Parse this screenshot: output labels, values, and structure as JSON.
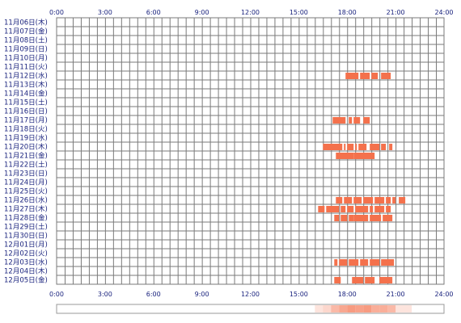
{
  "chart_data": {
    "type": "heatmap",
    "title": "",
    "xlabel": "",
    "ylabel": "",
    "x_ticks": [
      "0:00",
      "3:00",
      "6:00",
      "9:00",
      "12:00",
      "15:00",
      "18:00",
      "21:00",
      "24:00"
    ],
    "xlim": [
      0,
      24
    ],
    "grid_step_hours": 0.5,
    "grid": true,
    "colors": {
      "bar": "#f4714c",
      "bar_edge": "#e8563a",
      "grid": "#7a7a7a",
      "text": "#1a237e",
      "summary_border": "#999999"
    },
    "rows": [
      {
        "label": "11月06日(木)",
        "segments": []
      },
      {
        "label": "11月07日(金)",
        "segments": []
      },
      {
        "label": "11月08日(土)",
        "segments": []
      },
      {
        "label": "11月09日(日)",
        "segments": []
      },
      {
        "label": "11月10日(月)",
        "segments": []
      },
      {
        "label": "11月11日(火)",
        "segments": []
      },
      {
        "label": "11月12日(水)",
        "segments": [
          [
            17.9,
            18.7
          ],
          [
            18.8,
            19.4
          ],
          [
            19.5,
            19.9
          ],
          [
            20.1,
            20.7
          ]
        ]
      },
      {
        "label": "11月13日(木)",
        "segments": []
      },
      {
        "label": "11月14日(金)",
        "segments": []
      },
      {
        "label": "11月15日(土)",
        "segments": []
      },
      {
        "label": "11月16日(日)",
        "segments": []
      },
      {
        "label": "11月17日(月)",
        "segments": [
          [
            17.1,
            17.9
          ],
          [
            18.1,
            18.3
          ],
          [
            18.4,
            18.8
          ],
          [
            19.0,
            19.4
          ]
        ]
      },
      {
        "label": "11月18日(火)",
        "segments": []
      },
      {
        "label": "11月19日(水)",
        "segments": []
      },
      {
        "label": "11月20日(木)",
        "segments": [
          [
            16.5,
            17.7
          ],
          [
            17.8,
            17.9
          ],
          [
            18.0,
            18.4
          ],
          [
            18.5,
            18.6
          ],
          [
            18.7,
            19.2
          ],
          [
            19.4,
            20.0
          ],
          [
            20.1,
            20.4
          ],
          [
            20.6,
            20.8
          ]
        ]
      },
      {
        "label": "11月21日(金)",
        "segments": [
          [
            17.3,
            18.4
          ],
          [
            18.4,
            19.7
          ]
        ]
      },
      {
        "label": "11月22日(土)",
        "segments": []
      },
      {
        "label": "11月23日(日)",
        "segments": []
      },
      {
        "label": "11月24日(月)",
        "segments": []
      },
      {
        "label": "11月25日(火)",
        "segments": []
      },
      {
        "label": "11月26日(水)",
        "segments": [
          [
            17.3,
            17.7
          ],
          [
            17.8,
            18.3
          ],
          [
            18.4,
            18.9
          ],
          [
            19.0,
            19.6
          ],
          [
            19.7,
            20.3
          ],
          [
            20.4,
            20.7
          ],
          [
            20.8,
            21.0
          ],
          [
            21.2,
            21.6
          ]
        ]
      },
      {
        "label": "11月27日(木)",
        "segments": [
          [
            16.2,
            16.6
          ],
          [
            16.7,
            17.5
          ],
          [
            17.6,
            17.9
          ],
          [
            18.0,
            18.4
          ],
          [
            18.5,
            19.3
          ],
          [
            19.4,
            19.6
          ],
          [
            19.7,
            20.3
          ],
          [
            20.4,
            20.7
          ]
        ]
      },
      {
        "label": "11月28日(金)",
        "segments": [
          [
            17.2,
            17.5
          ],
          [
            17.6,
            18.0
          ],
          [
            18.1,
            18.4
          ],
          [
            18.4,
            19.3
          ],
          [
            19.4,
            20.1
          ],
          [
            20.2,
            20.8
          ]
        ]
      },
      {
        "label": "11月29日(土)",
        "segments": []
      },
      {
        "label": "11月30日(日)",
        "segments": []
      },
      {
        "label": "12月01日(月)",
        "segments": []
      },
      {
        "label": "12月02日(火)",
        "segments": []
      },
      {
        "label": "12月03日(水)",
        "segments": [
          [
            17.2,
            17.4
          ],
          [
            17.5,
            18.0
          ],
          [
            18.1,
            18.7
          ],
          [
            18.8,
            19.3
          ],
          [
            19.4,
            20.0
          ],
          [
            20.1,
            20.9
          ]
        ]
      },
      {
        "label": "12月04日(木)",
        "segments": []
      },
      {
        "label": "12月05日(金)",
        "segments": [
          [
            17.2,
            17.6
          ],
          [
            18.3,
            19.0
          ],
          [
            19.1,
            19.7
          ],
          [
            20.0,
            20.8
          ]
        ]
      }
    ]
  }
}
